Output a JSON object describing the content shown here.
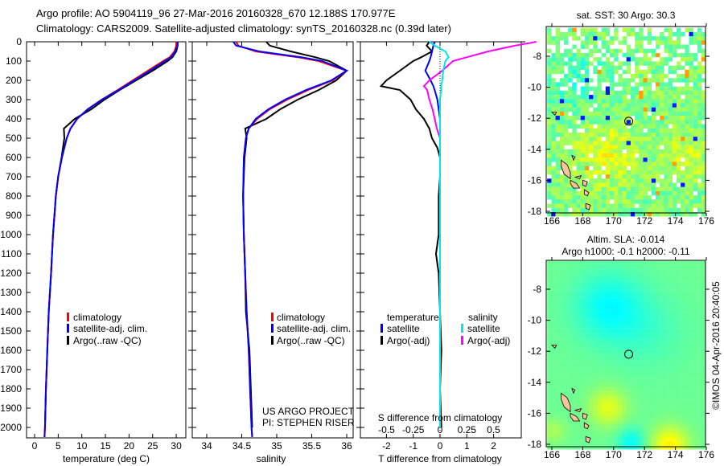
{
  "header": {
    "line1": "Argo profile: AO 5904119_96 27-Mar-2016 20160328_670 12.188S 170.977E",
    "line2": "Climatology: CARS2009. Satellite-adjusted climatology: synTS_20160328.nc (0.39d later)"
  },
  "colors": {
    "climatology": "#ff0000",
    "satellite": "#0000ff",
    "argo": "#000000",
    "sal_satellite": "#00e5ee",
    "sal_argo": "#ff00ff",
    "land": "#f5c39c"
  },
  "depth_ticks": [
    "0",
    "100",
    "200",
    "300",
    "400",
    "500",
    "600",
    "700",
    "800",
    "900",
    "1000",
    "1100",
    "1200",
    "1300",
    "1400",
    "1500",
    "1600",
    "1700",
    "1800",
    "1900",
    "2000"
  ],
  "chart_data": [
    {
      "type": "line",
      "xlabel": "temperature (deg C)",
      "ylabel": "depth",
      "xlim": [
        -1.7,
        32
      ],
      "ylim": [
        2054,
        0
      ],
      "x_ticks": [
        "0",
        "5",
        "10",
        "15",
        "20",
        "25",
        "30"
      ],
      "legend": [
        "climatology",
        "satellite-adj. clim.",
        "Argo(..raw -QC)"
      ],
      "depth": [
        0,
        20,
        50,
        80,
        100,
        150,
        200,
        250,
        300,
        350,
        400,
        450,
        500,
        600,
        700,
        800,
        900,
        1000,
        1200,
        1400,
        1600,
        1800,
        2000,
        2050
      ],
      "series": [
        {
          "name": "climatology",
          "values": [
            30.0,
            30.0,
            29.6,
            28.6,
            27.2,
            24.0,
            20.8,
            17.6,
            14.2,
            11.2,
            9.0,
            7.6,
            6.8,
            5.8,
            5.0,
            4.5,
            4.2,
            3.9,
            3.5,
            3.0,
            2.7,
            2.4,
            2.2,
            2.1
          ]
        },
        {
          "name": "satellite-adj. clim.",
          "values": [
            30.3,
            30.2,
            29.8,
            28.9,
            27.6,
            24.4,
            21.1,
            17.8,
            14.3,
            11.3,
            9.0,
            7.6,
            6.8,
            5.8,
            5.0,
            4.5,
            4.2,
            3.9,
            3.5,
            3.0,
            2.7,
            2.4,
            2.2,
            2.1
          ]
        },
        {
          "name": "Argo(..raw -QC)",
          "values": [
            30.3,
            30.3,
            30.0,
            29.2,
            28.2,
            25.0,
            21.5,
            18.0,
            14.8,
            12.0,
            8.5,
            6.2,
            6.3,
            5.7,
            5.0,
            4.5,
            4.2,
            3.9,
            3.5,
            3.0,
            2.7,
            2.4,
            2.2,
            null
          ]
        }
      ]
    },
    {
      "type": "line",
      "xlabel": "salinity",
      "xlim": [
        33.8,
        36.1
      ],
      "ylim": [
        2054,
        0
      ],
      "x_ticks": [
        "34",
        "34.5",
        "35",
        "35.5",
        "36"
      ],
      "legend": [
        "climatology",
        "satellite-adj. clim.",
        "Argo(..raw -QC)"
      ],
      "depth": [
        0,
        20,
        50,
        80,
        100,
        150,
        200,
        250,
        300,
        350,
        400,
        450,
        500,
        600,
        800,
        1000,
        1200,
        1400,
        1600,
        1800,
        2000,
        2050
      ],
      "series": [
        {
          "name": "climatology",
          "values": [
            34.42,
            34.45,
            34.7,
            35.3,
            35.6,
            36.0,
            35.8,
            35.45,
            35.15,
            34.9,
            34.72,
            34.6,
            34.56,
            34.53,
            34.52,
            34.53,
            34.55,
            34.57,
            34.6,
            34.62,
            34.64,
            34.65
          ]
        },
        {
          "name": "satellite-adj. clim.",
          "values": [
            34.38,
            34.42,
            34.75,
            35.35,
            35.65,
            36.0,
            35.78,
            35.42,
            35.12,
            34.88,
            34.7,
            34.6,
            34.56,
            34.53,
            34.52,
            34.53,
            34.55,
            34.57,
            34.6,
            34.62,
            34.64,
            34.65
          ]
        },
        {
          "name": "Argo(..raw -QC)",
          "values": [
            34.85,
            34.9,
            35.2,
            35.55,
            35.75,
            36.0,
            35.85,
            35.6,
            35.3,
            35.05,
            34.85,
            34.55,
            34.57,
            34.54,
            34.52,
            34.53,
            34.55,
            34.56,
            34.61,
            34.63,
            34.65,
            null
          ]
        }
      ],
      "annotation": [
        "US ARGO PROJECT",
        "PI: STEPHEN RISER"
      ]
    },
    {
      "type": "line",
      "xlabel": "T difference from climatology",
      "x2label": "S difference from climatology",
      "xlim": [
        -3,
        3
      ],
      "x2lim": [
        -0.75,
        0.75
      ],
      "ylim": [
        2054,
        0
      ],
      "x_ticks": [
        "-2",
        "-1",
        "0",
        "1",
        "2"
      ],
      "x2_ticks": [
        "-0.5",
        "-0.25",
        "0",
        "0.25",
        "0.5"
      ],
      "legend": {
        "temperature": "temperature",
        "salinity": "salinity",
        "satellite": "satellite",
        "argo": "Argo(-adj)"
      },
      "depth": [
        0,
        20,
        50,
        80,
        100,
        150,
        200,
        230,
        250,
        300,
        350,
        400,
        450,
        500,
        550,
        600,
        700,
        800,
        1000,
        1100,
        1200,
        1400,
        1600,
        1800,
        2000
      ],
      "series": [
        {
          "name": "temperature satellite",
          "values": [
            -0.2,
            -0.25,
            -0.3,
            -0.35,
            -0.4,
            -0.55,
            -0.35,
            -0.25,
            -0.2,
            -0.1,
            -0.05,
            0,
            0,
            0,
            0,
            0,
            0,
            0,
            0,
            0,
            0,
            0,
            0,
            0,
            0
          ]
        },
        {
          "name": "temperature Argo(-adj)",
          "values": [
            -0.4,
            -0.5,
            -0.3,
            -0.7,
            -1.0,
            -1.5,
            -2.0,
            -2.2,
            -1.5,
            -1.1,
            -0.9,
            -0.6,
            -0.4,
            -0.3,
            -0.1,
            0,
            0,
            -0.05,
            -0.05,
            -0.15,
            -0.05,
            0,
            0.05,
            0,
            0.05
          ]
        },
        {
          "name": "salinity satellite",
          "values": [
            -0.1,
            -0.05,
            0.05,
            0.08,
            0.05,
            0.03,
            0.02,
            0.01,
            0.01,
            0,
            0,
            0,
            0,
            0,
            0,
            0,
            0,
            0,
            0,
            0,
            0,
            0,
            0,
            0,
            0
          ]
        },
        {
          "name": "salinity Argo(-adj)",
          "values": [
            0.9,
            0.7,
            0.45,
            0.25,
            0.12,
            0.02,
            -0.1,
            -0.15,
            -0.12,
            -0.1,
            -0.07,
            -0.05,
            -0.03,
            0,
            0,
            0,
            0,
            0,
            0,
            0,
            0,
            0,
            0,
            0,
            0
          ]
        }
      ]
    }
  ],
  "maps": {
    "lon_ticks": [
      "166",
      "168",
      "170",
      "172",
      "174",
      "176"
    ],
    "lat_ticks": [
      "-8",
      "-10",
      "-12",
      "-14",
      "-16",
      "-18"
    ],
    "profile_location": {
      "lon": 170.977,
      "lat": -12.188
    },
    "sst": {
      "title": "sat. SST: 30 Argo: 30.3"
    },
    "sla": {
      "title1": "Altim. SLA: -0.014",
      "title2": "Argo h1000: -0.1 h2000: -0.11"
    },
    "credit": "©IMOS 04-Apr-2016 20:40:05"
  }
}
